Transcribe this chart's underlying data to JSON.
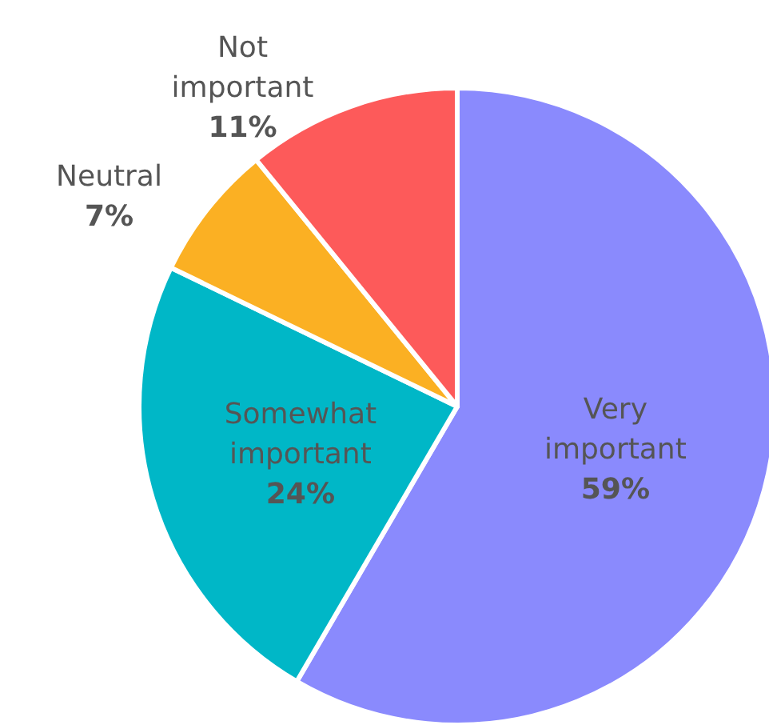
{
  "chart_data": {
    "type": "pie",
    "categories": [
      "Very important",
      "Somewhat important",
      "Neutral",
      "Not important"
    ],
    "values": [
      59,
      24,
      7,
      11
    ],
    "value_labels": [
      "59%",
      "24%",
      "7%",
      "11%"
    ],
    "colors": [
      "#8a8afd",
      "#00b7c7",
      "#fbb023",
      "#fd5a5a"
    ],
    "legend": false
  }
}
